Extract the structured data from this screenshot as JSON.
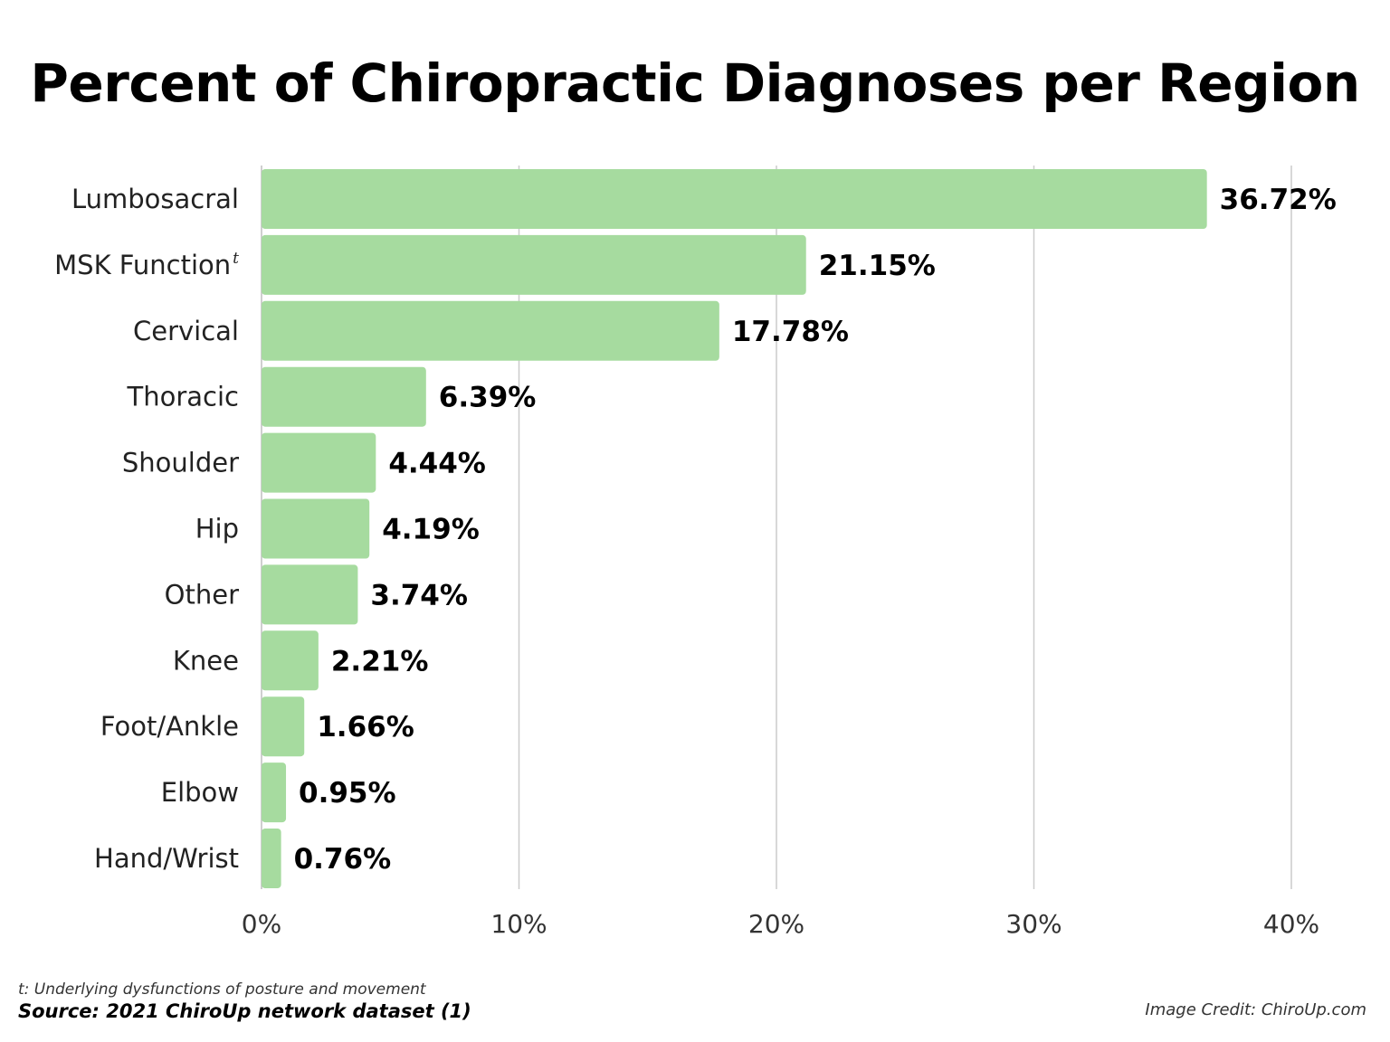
{
  "page": {
    "footnote": "t: Underlying dysfunctions of posture and movement",
    "source": "Source: 2021 ChiroUp network dataset (1)",
    "credit": "Image Credit: ChiroUp.com"
  },
  "chart_data": {
    "type": "bar",
    "orientation": "horizontal",
    "title": "Percent of Chiropractic Diagnoses per Region",
    "xlabel": "",
    "ylabel": "",
    "categories": [
      "Lumbosacral",
      "MSK Function",
      "Cervical",
      "Thoracic",
      "Shoulder",
      "Hip",
      "Other",
      "Knee",
      "Foot/Ankle",
      "Elbow",
      "Hand/Wrist"
    ],
    "category_superscripts": [
      "",
      "t",
      "",
      "",
      "",
      "",
      "",
      "",
      "",
      "",
      ""
    ],
    "values": [
      36.72,
      21.15,
      17.78,
      6.39,
      4.44,
      4.19,
      3.74,
      2.21,
      1.66,
      0.95,
      0.76
    ],
    "value_labels": [
      "36.72%",
      "21.15%",
      "17.78%",
      "6.39%",
      "4.44%",
      "4.19%",
      "3.74%",
      "2.21%",
      "1.66%",
      "0.95%",
      "0.76%"
    ],
    "xlim": [
      0,
      40
    ],
    "x_ticks": [
      0,
      10,
      20,
      30,
      40
    ],
    "x_tick_labels": [
      "0%",
      "10%",
      "20%",
      "30%",
      "40%"
    ],
    "grid": "vertical",
    "bar_color": "#a6db9f",
    "grid_color": "#cccccc",
    "legend": "none"
  }
}
